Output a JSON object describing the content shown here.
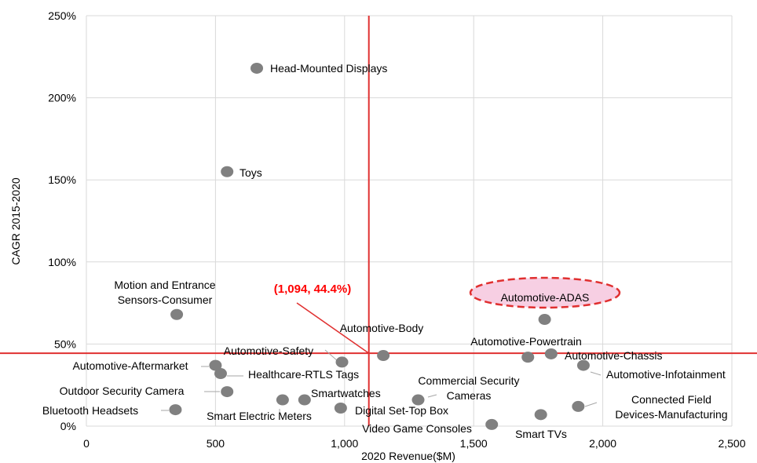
{
  "chart_data": {
    "type": "scatter",
    "title": "",
    "xlabel": "2020 Revenue($M)",
    "ylabel": "CAGR 2015-2020",
    "xlim": [
      0,
      2500
    ],
    "ylim": [
      0,
      250
    ],
    "x_ticks": [
      0,
      500,
      1000,
      1500,
      2000,
      2500
    ],
    "x_tick_labels": [
      "0",
      "500",
      "1,000",
      "1,500",
      "2,000",
      "2,500"
    ],
    "y_ticks": [
      0,
      50,
      100,
      150,
      200,
      250
    ],
    "y_tick_labels": [
      "0%",
      "50%",
      "100%",
      "150%",
      "200%",
      "250%"
    ],
    "grid": true,
    "marker_color": "#808080",
    "reference_color": "#e03030",
    "callout_color": "#ff0000",
    "reference_lines": {
      "x": 1094,
      "y": 44.4
    },
    "callout": "(1,094, 44.4%)",
    "highlight": "Automotive-ADAS",
    "points": [
      {
        "label": "Head-Mounted Displays",
        "x": 660,
        "y": 218
      },
      {
        "label": "Toys",
        "x": 545,
        "y": 155
      },
      {
        "label": "Motion and Entrance Sensors-Consumer",
        "x": 350,
        "y": 68
      },
      {
        "label": "Automotive-ADAS",
        "x": 1775,
        "y": 65
      },
      {
        "label": "Automotive-Body",
        "x": 1150,
        "y": 43
      },
      {
        "label": "Automotive-Safety",
        "x": 990,
        "y": 39
      },
      {
        "label": "Automotive-Powertrain",
        "x": 1710,
        "y": 42
      },
      {
        "label": "Automotive-Chassis",
        "x": 1800,
        "y": 44
      },
      {
        "label": "Automotive-Infotainment",
        "x": 1925,
        "y": 37
      },
      {
        "label": "Automotive-Aftermarket",
        "x": 500,
        "y": 37
      },
      {
        "label": "Healthcare-RTLS Tags",
        "x": 520,
        "y": 32
      },
      {
        "label": "Outdoor Security Camera",
        "x": 545,
        "y": 21
      },
      {
        "label": "Commercial Security Cameras",
        "x": 1285,
        "y": 16
      },
      {
        "label": "Smartwatches",
        "x": 845,
        "y": 16
      },
      {
        "label": "Smart Electric Meters",
        "x": 760,
        "y": 16
      },
      {
        "label": "Bluetooth Headsets",
        "x": 345,
        "y": 10
      },
      {
        "label": "Digital Set-Top Box",
        "x": 985,
        "y": 11
      },
      {
        "label": "Connected Field Devices-Manufacturing",
        "x": 1905,
        "y": 12
      },
      {
        "label": "Video Game Consoles",
        "x": 1570,
        "y": 1
      },
      {
        "label": "Smart TVs",
        "x": 1760,
        "y": 7
      }
    ]
  }
}
